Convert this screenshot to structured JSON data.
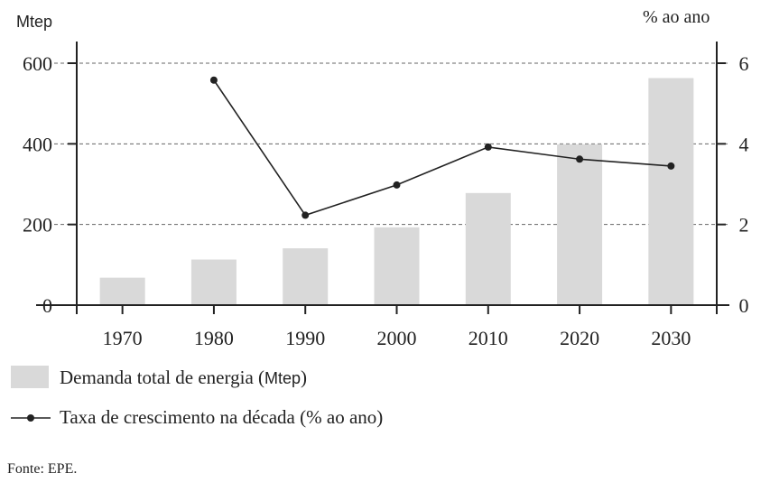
{
  "chart_data": {
    "type": "bar+line",
    "categories": [
      "1970",
      "1980",
      "1990",
      "2000",
      "2010",
      "2020",
      "2030"
    ],
    "series": [
      {
        "name": "Demanda total de energia (Mtep)",
        "type": "bar",
        "axis": "left",
        "values": [
          68,
          113,
          141,
          193,
          278,
          399,
          563
        ],
        "color": "#d9d9d9"
      },
      {
        "name": "Taxa de crescimento na década (% ao ano)",
        "type": "line",
        "axis": "right",
        "values": [
          null,
          5.58,
          2.23,
          2.98,
          3.92,
          3.62,
          3.45
        ],
        "color": "#222222"
      }
    ],
    "y_left": {
      "label": "Mtep",
      "lim": [
        0,
        600
      ],
      "ticks": [
        "0",
        "200",
        "400",
        "600"
      ]
    },
    "y_right": {
      "label": "% ao ano",
      "lim": [
        0,
        6
      ],
      "ticks": [
        "0",
        "2",
        "4",
        "6"
      ]
    },
    "grid": "dashed horizontal at 200, 400, 600",
    "legend_position": "bottom-left"
  },
  "labels": {
    "left_unit": "Mtep",
    "right_unit": "% ao ano",
    "legend_bar_main": "Demanda total de energia (",
    "legend_bar_unit": "Mtep",
    "legend_bar_close": ")",
    "legend_line_main": "Taxa de crescimento na década (",
    "legend_line_unit": "% ao ano",
    "legend_line_close": ")",
    "source": "Fonte: EPE."
  },
  "colors": {
    "bar": "#d9d9d9",
    "line": "#222222",
    "axis": "#222222",
    "grid": "#666666"
  }
}
